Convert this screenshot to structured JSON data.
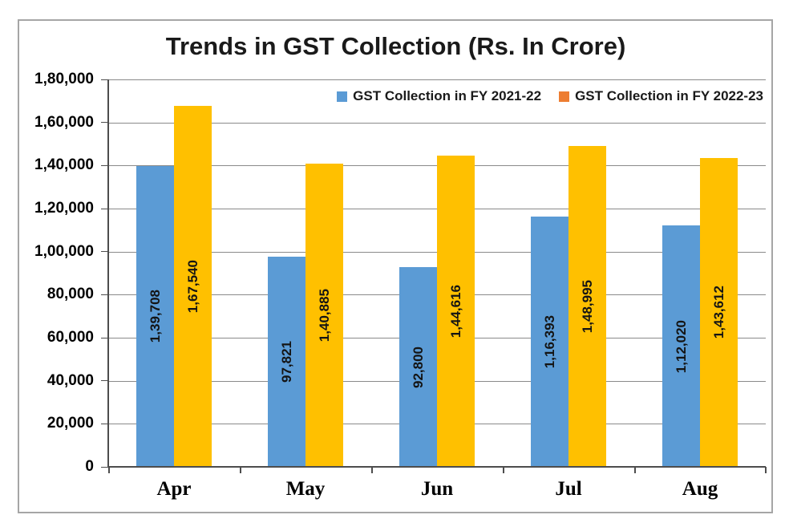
{
  "chart_data": {
    "type": "bar",
    "title": "Trends in GST Collection (Rs. In Crore)",
    "categories": [
      "Apr",
      "May",
      "Jun",
      "Jul",
      "Aug"
    ],
    "series": [
      {
        "name": "GST Collection in FY 2021-22",
        "bar_color": "#5B9BD5",
        "legend_color": "#5B9BD5",
        "values": [
          139708,
          97821,
          92800,
          116393,
          112020
        ],
        "data_labels": [
          "1,39,708",
          "97,821",
          "92,800",
          "1,16,393",
          "1,12,020"
        ]
      },
      {
        "name": "GST Collection in FY 2022-23",
        "bar_color": "#FFC000",
        "legend_color": "#ED7D31",
        "values": [
          167540,
          140885,
          144616,
          148995,
          143612
        ],
        "data_labels": [
          "1,67,540",
          "1,40,885",
          "1,44,616",
          "1,48,995",
          "1,43,612"
        ]
      }
    ],
    "y_axis": {
      "min": 0,
      "max": 180000,
      "step": 20000,
      "tick_labels_top_to_bottom": [
        "1,80,000",
        "1,60,000",
        "1,40,000",
        "1,20,000",
        "1,00,000",
        "80,000",
        "60,000",
        "40,000",
        "20,000",
        "0"
      ]
    },
    "grid": true,
    "legend_position": "top-right",
    "colors": {
      "gridline": "#8a8a8a",
      "axis": "#4d4d4d",
      "text": "#000000",
      "frame_border": "#a6a6a6",
      "background": "#ffffff"
    }
  }
}
